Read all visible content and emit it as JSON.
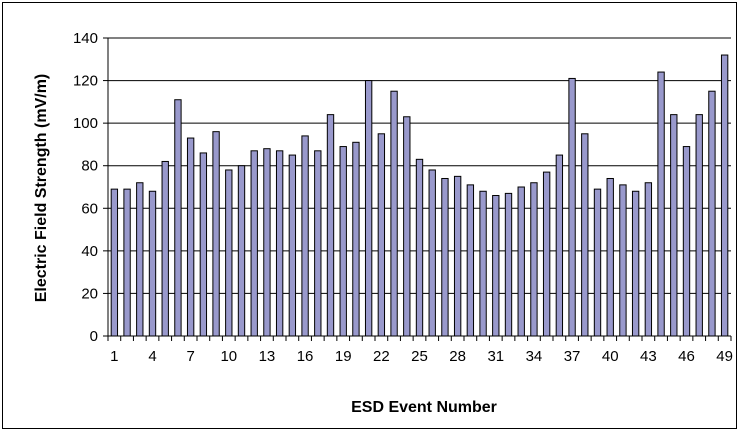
{
  "chart_data": {
    "type": "bar",
    "xlabel": "ESD Event Number",
    "ylabel": "Electric Field Strength (mV/m)",
    "ylim": [
      0,
      140
    ],
    "y_ticks": [
      "0",
      "20",
      "40",
      "60",
      "80",
      "100",
      "120",
      "140"
    ],
    "x_tick_labels": [
      "1",
      "4",
      "7",
      "10",
      "13",
      "16",
      "19",
      "22",
      "25",
      "28",
      "31",
      "34",
      "37",
      "40",
      "43",
      "46",
      "49"
    ],
    "grid": true,
    "legend": "none",
    "bar_color": "#9999cc",
    "categories": [
      "1",
      "2",
      "3",
      "4",
      "5",
      "6",
      "7",
      "8",
      "9",
      "10",
      "11",
      "12",
      "13",
      "14",
      "15",
      "16",
      "17",
      "18",
      "19",
      "20",
      "21",
      "22",
      "23",
      "24",
      "25",
      "26",
      "27",
      "28",
      "29",
      "30",
      "31",
      "32",
      "33",
      "34",
      "35",
      "36",
      "37",
      "38",
      "39",
      "40",
      "41",
      "42",
      "43",
      "44",
      "45",
      "46",
      "47",
      "48",
      "49"
    ],
    "values": [
      69,
      69,
      72,
      68,
      82,
      111,
      93,
      86,
      96,
      78,
      80,
      87,
      88,
      87,
      85,
      94,
      87,
      104,
      89,
      91,
      120,
      95,
      115,
      103,
      83,
      78,
      74,
      75,
      71,
      68,
      66,
      67,
      70,
      72,
      77,
      85,
      121,
      95,
      69,
      74,
      71,
      68,
      72,
      124,
      104,
      89,
      104,
      115,
      132
    ]
  }
}
